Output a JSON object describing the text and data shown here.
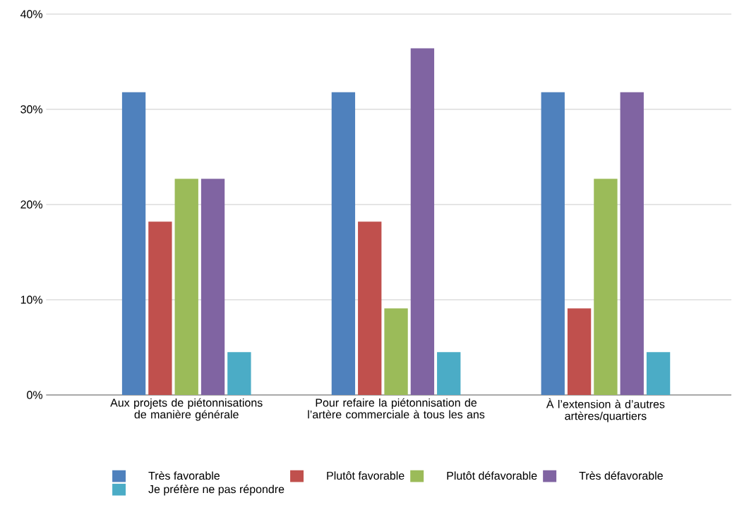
{
  "chart_data": {
    "type": "bar",
    "categories": [
      "Aux projets de piétonnisations de manière générale",
      "Pour refaire la piétonnisation de l’artère commerciale à tous les ans",
      "À l’extension à d’autres artères/quartiers"
    ],
    "series": [
      {
        "name": "Très favorable",
        "color": "#4f81bd",
        "values": [
          31.8,
          31.8,
          31.8
        ]
      },
      {
        "name": "Plutôt favorable",
        "color": "#c0504d",
        "values": [
          18.2,
          18.2,
          9.1
        ]
      },
      {
        "name": "Plutôt défavorable",
        "color": "#9bbb59",
        "values": [
          22.7,
          9.1,
          22.7
        ]
      },
      {
        "name": "Très défavorable",
        "color": "#8064a2",
        "values": [
          22.7,
          36.4,
          31.8
        ]
      },
      {
        "name": "Je préfère ne pas répondre",
        "color": "#4bacc6",
        "values": [
          4.5,
          4.5,
          4.5
        ]
      }
    ],
    "ylim": [
      0,
      40
    ],
    "yticks": [
      {
        "value": 0,
        "label": "0%"
      },
      {
        "value": 10,
        "label": "10%"
      },
      {
        "value": 20,
        "label": "20%"
      },
      {
        "value": 30,
        "label": "30%"
      },
      {
        "value": 40,
        "label": "40%"
      }
    ],
    "grid": "y",
    "legend": "bottom"
  }
}
